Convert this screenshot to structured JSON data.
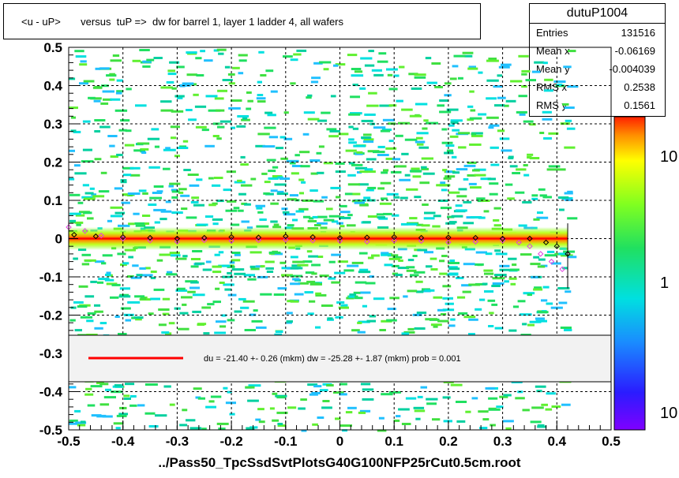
{
  "title": "<u - uP>       versus  tuP =>  dw for barrel 1, layer 1 ladder 4, all wafers",
  "stats": {
    "name": "dutuP1004",
    "rows": [
      {
        "label": "Entries",
        "value": "131516"
      },
      {
        "label": "Mean x",
        "value": "-0.06169"
      },
      {
        "label": "Mean y",
        "value": "-0.004039"
      },
      {
        "label": "RMS x",
        "value": "0.2538"
      },
      {
        "label": "RMS y",
        "value": "0.1561"
      }
    ]
  },
  "fit_legend": "du =  -21.40 +-  0.26 (mkm) dw =  -25.28 +-  1.87 (mkm) prob = 0.001",
  "x_title": "../Pass50_TpcSsdSvtPlotsG40G100NFP25rCut0.5cm.root",
  "colors": {
    "fit_line": "#ff0000",
    "profile_black": "#000000",
    "profile_magenta": "#e040e0"
  },
  "chart_data": {
    "type": "heatmap",
    "xlim": [
      -0.5,
      0.5
    ],
    "ylim": [
      -0.5,
      0.5
    ],
    "xticks": [
      "-0.5",
      "-0.4",
      "-0.3",
      "-0.2",
      "-0.1",
      "0",
      "0.1",
      "0.2",
      "0.3",
      "0.4",
      "0.5"
    ],
    "yticks": [
      "-0.5",
      "-0.4",
      "-0.3",
      "-0.2",
      "-0.1",
      "0",
      "0.1",
      "0.2",
      "0.3",
      "0.4",
      "0.5"
    ],
    "grid": true,
    "colorbar_labels": [
      "10",
      "1",
      "10"
    ],
    "fit_line": {
      "x": [
        -0.5,
        0.42
      ],
      "y": [
        0.0,
        0.0
      ]
    },
    "profile_black": {
      "x": [
        -0.49,
        -0.45,
        -0.4,
        -0.35,
        -0.3,
        -0.25,
        -0.2,
        -0.15,
        -0.1,
        -0.05,
        0.0,
        0.05,
        0.1,
        0.15,
        0.2,
        0.25,
        0.3,
        0.35,
        0.38,
        0.4,
        0.42
      ],
      "y": [
        0.01,
        0.006,
        0.004,
        0.002,
        0.0,
        0.002,
        0.004,
        0.003,
        0.006,
        0.004,
        0.002,
        0.003,
        0.004,
        0.002,
        0.003,
        0.002,
        0.0,
        0.0,
        -0.01,
        -0.02,
        -0.04
      ]
    },
    "profile_magenta": {
      "x": [
        -0.5,
        -0.47,
        -0.44,
        -0.4,
        -0.35,
        -0.3,
        -0.25,
        -0.2,
        -0.15,
        -0.1,
        -0.05,
        0.0,
        0.05,
        0.1,
        0.15,
        0.2,
        0.25,
        0.3,
        0.33,
        0.35,
        0.37,
        0.39,
        0.41
      ],
      "y": [
        0.03,
        0.02,
        0.008,
        0.0,
        -0.005,
        -0.008,
        -0.004,
        -0.006,
        -0.004,
        -0.003,
        -0.005,
        -0.006,
        -0.008,
        -0.005,
        -0.006,
        -0.01,
        -0.008,
        -0.005,
        -0.01,
        -0.02,
        -0.04,
        -0.06,
        -0.08
      ]
    }
  }
}
